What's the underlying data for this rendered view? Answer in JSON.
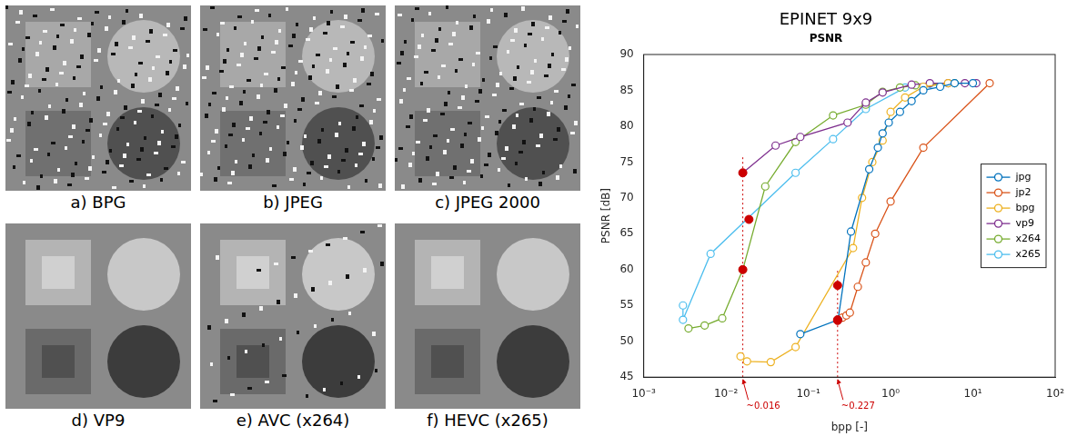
{
  "chart_data": {
    "type": "line",
    "title": "EPINET 9x9",
    "subtitle": "PSNR",
    "x_label": "bpp [-]",
    "y_label": "PSNR [dB]",
    "log": "x",
    "grid": false,
    "legend": "right",
    "marker": "circle",
    "xlim": [
      0.001,
      100
    ],
    "xticks": [
      {
        "value": 0.001,
        "label": "10⁻³"
      },
      {
        "value": 0.01,
        "label": "10⁻²"
      },
      {
        "value": 0.1,
        "label": "10⁻¹"
      },
      {
        "value": 1,
        "label": "10⁰"
      },
      {
        "value": 10,
        "label": "10¹"
      },
      {
        "value": 100,
        "label": "10²"
      }
    ],
    "ylim": [
      45,
      90
    ],
    "yticks": [
      45,
      50,
      55,
      60,
      65,
      70,
      75,
      80,
      85,
      90
    ],
    "series": [
      {
        "name": "jpg",
        "color": "#0072bd",
        "x": [
          0.08,
          0.23,
          0.33,
          0.55,
          0.7,
          0.8,
          0.95,
          1.3,
          1.8,
          2.5,
          4,
          6,
          10
        ],
        "values": [
          51,
          53,
          65.3,
          74,
          77,
          79,
          80.5,
          82,
          83.5,
          85,
          85.5,
          86,
          86
        ]
      },
      {
        "name": "jp2",
        "color": "#d95319",
        "x": [
          0.23,
          0.26,
          0.29,
          0.32,
          0.4,
          0.5,
          0.65,
          1,
          2.5,
          16
        ],
        "values": [
          53,
          53.3,
          53.6,
          54,
          57.6,
          61,
          65,
          69.5,
          77,
          86
        ]
      },
      {
        "name": "bpg",
        "color": "#edb120",
        "x": [
          0.015,
          0.018,
          0.035,
          0.07,
          0.35,
          0.45,
          0.6,
          0.8,
          1,
          1.5,
          2.5,
          5
        ],
        "values": [
          47.9,
          47.2,
          47.1,
          49.2,
          63,
          70,
          75,
          78,
          82,
          84,
          85.5,
          86
        ]
      },
      {
        "name": "vp9",
        "color": "#7e2f8e",
        "x": [
          0.016,
          0.04,
          0.08,
          0.3,
          0.5,
          0.8,
          1.8,
          3,
          5,
          8,
          11
        ],
        "values": [
          73.5,
          77.3,
          78.5,
          80.5,
          83.3,
          84.7,
          85.8,
          86,
          86,
          86,
          86
        ]
      },
      {
        "name": "x264",
        "color": "#77ac30",
        "x": [
          0.0035,
          0.0055,
          0.009,
          0.016,
          0.03,
          0.07,
          0.2,
          0.5,
          0.8,
          1.3,
          2,
          6
        ],
        "values": [
          51.8,
          52.2,
          53.2,
          60,
          71.6,
          77.8,
          81.5,
          83,
          84.8,
          85.4,
          85.7,
          86
        ]
      },
      {
        "name": "x265",
        "color": "#4dbeee",
        "x": [
          0.003,
          0.003,
          0.0065,
          0.07,
          0.2,
          0.5,
          1.5,
          3
        ],
        "values": [
          55,
          53,
          62.2,
          73.5,
          78.2,
          82.4,
          85.4,
          85.9
        ]
      }
    ],
    "annotations": [
      {
        "x": 0.016,
        "label": "~0.016",
        "color": "#cc0000",
        "line_style": "dotted",
        "points": [
          {
            "x": 0.016,
            "y": 73.5
          },
          {
            "x": 0.016,
            "y": 60
          },
          {
            "x": 0.019,
            "y": 67
          }
        ]
      },
      {
        "x": 0.227,
        "label": "~0.227",
        "color": "#cc0000",
        "line_style": "dotted",
        "points": [
          {
            "x": 0.227,
            "y": 57.8
          },
          {
            "x": 0.227,
            "y": 53
          },
          {
            "x": 0.227,
            "y": 52.9
          }
        ]
      }
    ]
  },
  "figure": {
    "panels": [
      {
        "label": "a) BPG"
      },
      {
        "label": "b) JPEG"
      },
      {
        "label": "c) JPEG 2000"
      },
      {
        "label": "d) VP9"
      },
      {
        "label": "e) AVC (x264)"
      },
      {
        "label": "f) HEVC (x265)"
      }
    ]
  }
}
